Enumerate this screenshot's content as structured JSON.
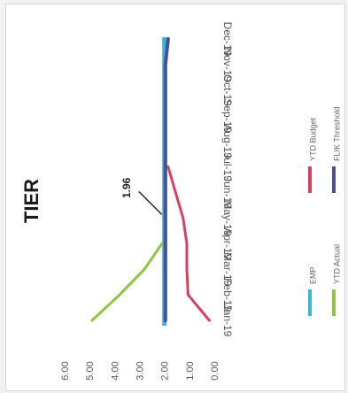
{
  "chart_data": {
    "type": "line",
    "title": "TIER",
    "orientation": "rotated 90° clockwise (categories run vertically, values horizontally)",
    "categories": [
      "Jan-19",
      "Feb-19",
      "Mar-19",
      "Apr-19",
      "May-19",
      "Jun-19",
      "Jul-19",
      "Aug-19",
      "Sep-19",
      "Oct-19",
      "Nov-19",
      "Dec-19"
    ],
    "y_ticks": [
      "6.00",
      "5.00",
      "4.00",
      "3.00",
      "2.00",
      "1.00",
      "0.00"
    ],
    "ylim": [
      0,
      6
    ],
    "grid": false,
    "legend_position": "bottom",
    "series": [
      {
        "name": "EMP",
        "color": "#36b6d8",
        "values": [
          2.0,
          2.0,
          2.0,
          2.0,
          2.0,
          2.0,
          2.0,
          2.0,
          2.0,
          2.0,
          2.0,
          2.0
        ]
      },
      {
        "name": "YTD Actual",
        "color": "#8dc63f",
        "values": [
          4.9,
          3.8,
          2.8,
          2.1,
          null,
          null,
          null,
          null,
          null,
          null,
          null,
          null
        ]
      },
      {
        "name": "YTD Budget",
        "color": "#d8415e",
        "values": [
          0.2,
          1.05,
          1.1,
          1.1,
          1.25,
          1.55,
          1.85,
          null,
          null,
          null,
          null,
          null
        ]
      },
      {
        "name": "FLIK Threshold",
        "color": "#4a4f9c",
        "values": [
          1.96,
          1.96,
          1.96,
          1.96,
          1.96,
          1.96,
          1.96,
          1.96,
          1.96,
          1.96,
          1.96,
          1.85
        ]
      }
    ],
    "annotation": {
      "text": "1.96",
      "category": "May-19",
      "value": 1.96
    }
  }
}
